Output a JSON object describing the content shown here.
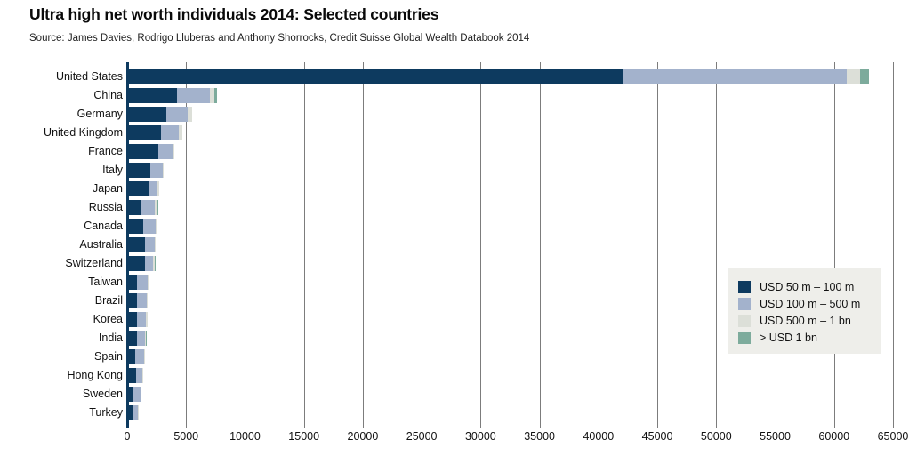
{
  "header": {
    "title": "Ultra high net worth individuals 2014: Selected countries",
    "source": "Source: James Davies, Rodrigo Lluberas and Anthony Shorrocks, Credit Suisse Global Wealth Databook 2014"
  },
  "colors": {
    "band_50m_100m": "#0d3a5f",
    "band_100m_500m": "#a3b2cc",
    "band_500m_1bn": "#dcdfd8",
    "band_over_1bn": "#7dab9c",
    "gridline": "#7c7c7c",
    "legend_background": "#eeeeea",
    "text": "#111111"
  },
  "chart_data": {
    "type": "bar",
    "orientation": "horizontal",
    "stacked": true,
    "grid": true,
    "legend_position": "middle-right",
    "title": "Ultra high net worth individuals 2014: Selected countries",
    "xlabel": "",
    "ylabel": "",
    "xlim": [
      0,
      65000
    ],
    "x_ticks": [
      0,
      5000,
      10000,
      15000,
      20000,
      25000,
      30000,
      35000,
      40000,
      45000,
      50000,
      55000,
      60000,
      65000
    ],
    "categories": [
      "United States",
      "China",
      "Germany",
      "United Kingdom",
      "France",
      "Italy",
      "Japan",
      "Russia",
      "Canada",
      "Australia",
      "Switzerland",
      "Taiwan",
      "Brazil",
      "Korea",
      "India",
      "Spain",
      "Hong Kong",
      "Sweden",
      "Turkey"
    ],
    "series": [
      {
        "name": "USD 50 m – 100 m",
        "color": "#0d3a5f",
        "values": [
          42100,
          4200,
          3350,
          2850,
          2650,
          2000,
          1800,
          1200,
          1350,
          1500,
          1500,
          800,
          850,
          800,
          850,
          650,
          750,
          550,
          450
        ]
      },
      {
        "name": "USD 100 m – 500 m",
        "color": "#a3b2cc",
        "values": [
          19000,
          2850,
          1750,
          1550,
          1250,
          1000,
          750,
          1150,
          1050,
          850,
          700,
          950,
          800,
          800,
          650,
          750,
          500,
          550,
          450
        ]
      },
      {
        "name": "USD 500 m – 1 bn",
        "color": "#dcdfd8",
        "values": [
          1100,
          350,
          400,
          300,
          100,
          100,
          150,
          150,
          100,
          50,
          150,
          50,
          100,
          100,
          100,
          100,
          50,
          100,
          100
        ]
      },
      {
        "name": "> USD 1 bn",
        "color": "#7dab9c",
        "values": [
          800,
          200,
          0,
          0,
          0,
          0,
          0,
          150,
          0,
          0,
          50,
          0,
          0,
          0,
          50,
          0,
          0,
          0,
          0
        ]
      }
    ],
    "totals": [
      63000,
      7600,
      5500,
      4700,
      4000,
      3100,
      2700,
      2650,
      2500,
      2400,
      2400,
      1800,
      1750,
      1700,
      1650,
      1500,
      1300,
      1200,
      1000
    ]
  }
}
